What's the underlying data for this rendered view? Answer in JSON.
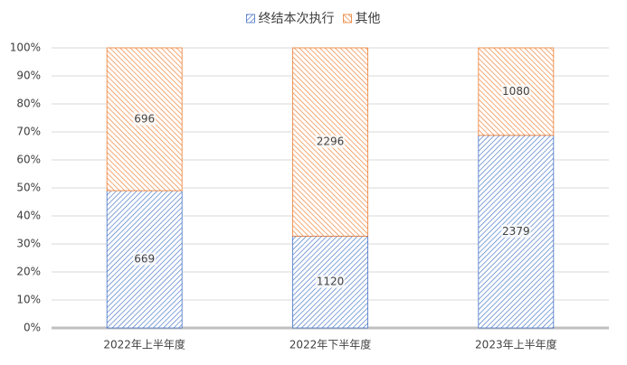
{
  "chart_data": {
    "type": "bar",
    "stacking": "percent",
    "categories": [
      "2022年上半年度",
      "2022年下半年度",
      "2023年上半年度"
    ],
    "series": [
      {
        "name": "终结本次执行",
        "color": "#4472c4",
        "values": [
          669,
          1120,
          2379
        ]
      },
      {
        "name": "其他",
        "color": "#ed7d31",
        "values": [
          696,
          2296,
          1080
        ]
      }
    ],
    "ylim": [
      0,
      100
    ],
    "yticks": [
      {
        "value": 0,
        "label": "0%"
      },
      {
        "value": 10,
        "label": "10%"
      },
      {
        "value": 20,
        "label": "20%"
      },
      {
        "value": 30,
        "label": "30%"
      },
      {
        "value": 40,
        "label": "40%"
      },
      {
        "value": 50,
        "label": "50%"
      },
      {
        "value": 60,
        "label": "60%"
      },
      {
        "value": 70,
        "label": "70%"
      },
      {
        "value": 80,
        "label": "80%"
      },
      {
        "value": 90,
        "label": "90%"
      },
      {
        "value": 100,
        "label": "100%"
      }
    ],
    "grid": true,
    "legend": "top"
  }
}
